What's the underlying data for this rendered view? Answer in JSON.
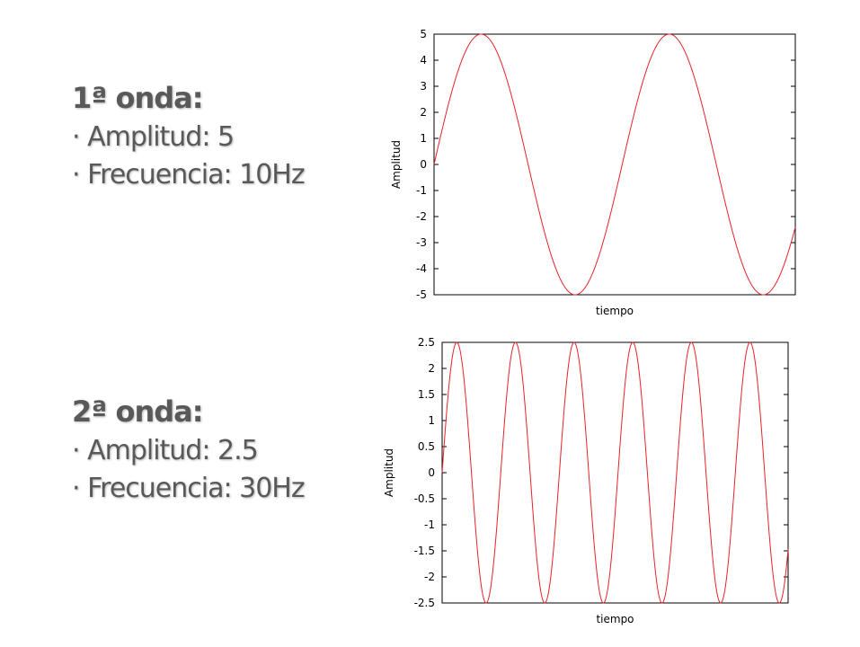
{
  "waves": [
    {
      "heading": "1ª onda:",
      "amplitude_line": "· Amplitud: 5",
      "frequency_line": "· Frecuencia: 10Hz"
    },
    {
      "heading": "2ª onda:",
      "amplitude_line": "· Amplitud: 2.5",
      "frequency_line": "· Frecuencia: 30Hz"
    }
  ],
  "chart_data": [
    {
      "type": "line",
      "title": "",
      "xlabel": "tiempo",
      "ylabel": "Amplitud",
      "ylim": [
        -5,
        5
      ],
      "yticks": [
        "5",
        "4",
        "3",
        "2",
        "1",
        "0",
        "-1",
        "-2",
        "-3",
        "-4",
        "-5"
      ],
      "grid": false,
      "series": [
        {
          "color": "#e8212b",
          "amplitude": 5,
          "cycles_shown": 1.92
        }
      ]
    },
    {
      "type": "line",
      "title": "",
      "xlabel": "tiempo",
      "ylabel": "Amplitud",
      "ylim": [
        -2.5,
        2.5
      ],
      "yticks": [
        "2.5",
        "2",
        "1.5",
        "1",
        "0.5",
        "0",
        "-0.5",
        "-1",
        "-1.5",
        "-2",
        "-2.5"
      ],
      "grid": false,
      "series": [
        {
          "color": "#e8212b",
          "amplitude": 2.5,
          "cycles_shown": 5.9
        }
      ]
    }
  ]
}
